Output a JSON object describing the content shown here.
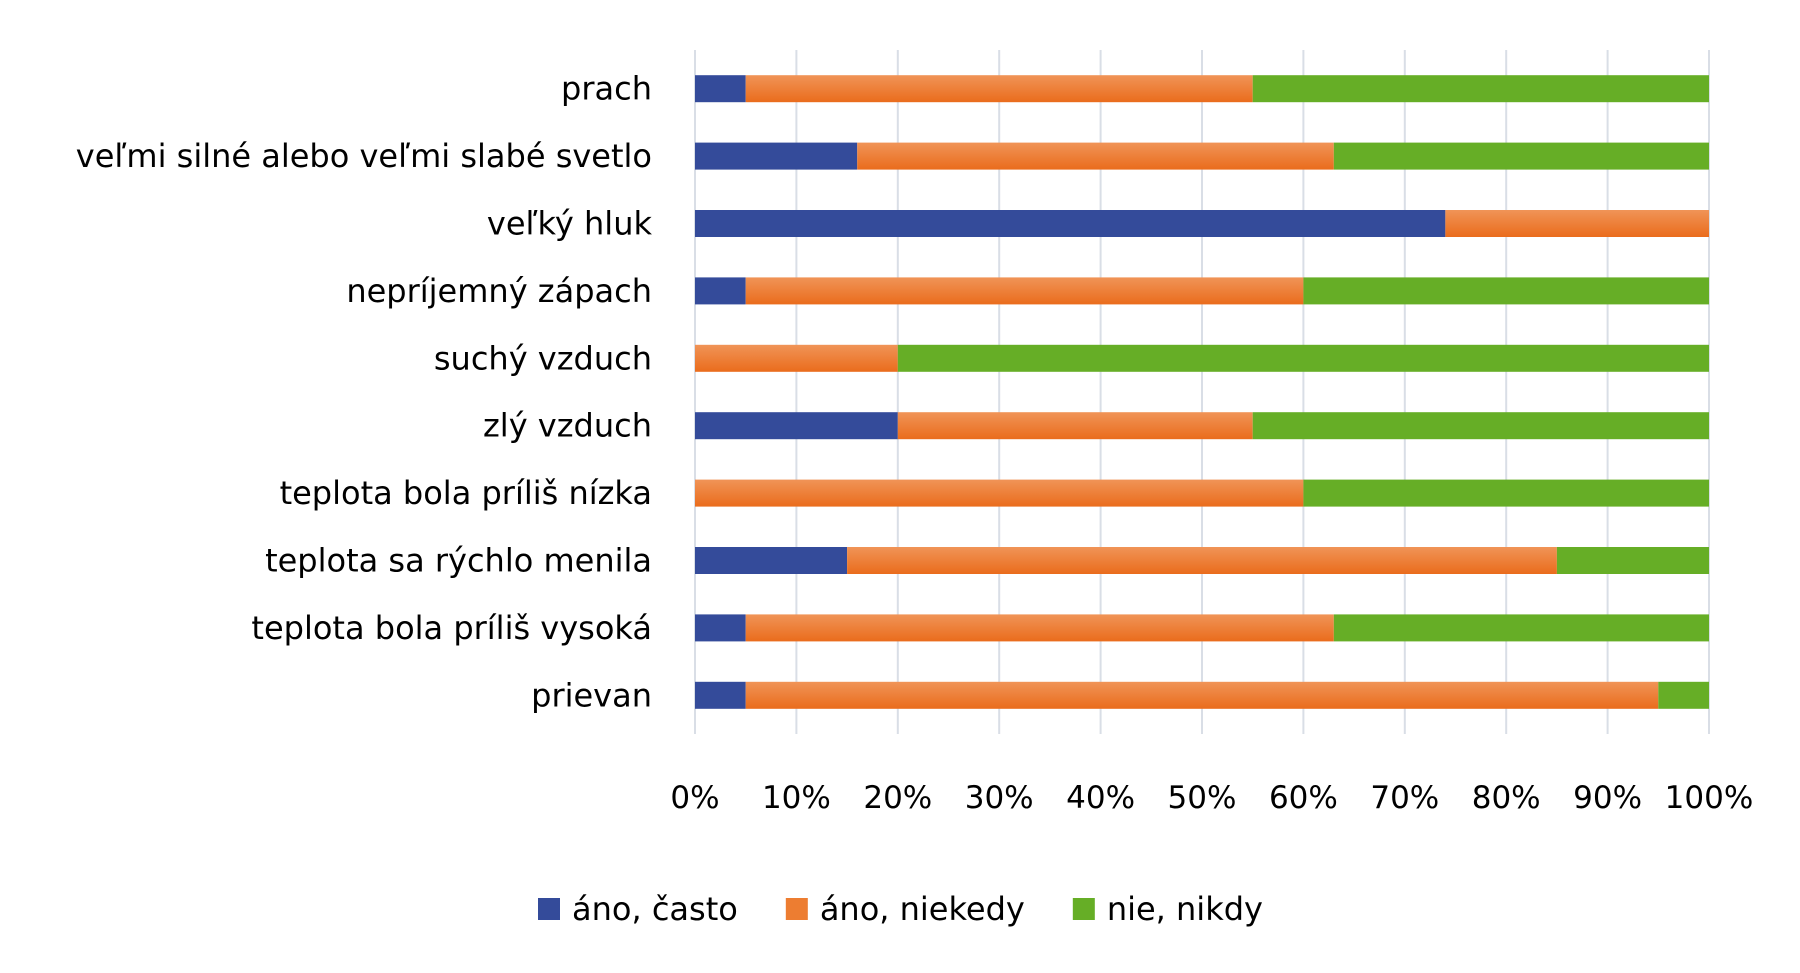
{
  "chart_data": {
    "type": "bar",
    "orientation": "horizontal",
    "stacked": "percent",
    "title": "",
    "xlabel": "",
    "ylabel": "",
    "xlim": [
      0,
      100
    ],
    "x_ticks": [
      "0%",
      "10%",
      "20%",
      "30%",
      "40%",
      "50%",
      "60%",
      "70%",
      "80%",
      "90%",
      "100%"
    ],
    "grid": true,
    "legend_position": "bottom",
    "categories": [
      "prach",
      "veľmi silné alebo veľmi slabé svetlo",
      "veľký hluk",
      "nepríjemný zápach",
      "suchý vzduch",
      "zlý vzduch",
      "teplota bola príliš nízka",
      "teplota sa rýchlo menila",
      "teplota bola príliš vysoká",
      "prievan"
    ],
    "series": [
      {
        "name": "áno, často",
        "color": "#344B9A",
        "values": [
          5,
          16,
          74,
          5,
          0,
          20,
          0,
          15,
          5,
          5
        ]
      },
      {
        "name": "áno, niekedy",
        "color": "#ED7D31",
        "values": [
          50,
          47,
          26,
          55,
          20,
          35,
          60,
          70,
          58,
          90
        ]
      },
      {
        "name": "nie, nikdy",
        "color": "#66AE26",
        "values": [
          45,
          37,
          0,
          40,
          80,
          45,
          40,
          15,
          37,
          5
        ]
      }
    ]
  }
}
